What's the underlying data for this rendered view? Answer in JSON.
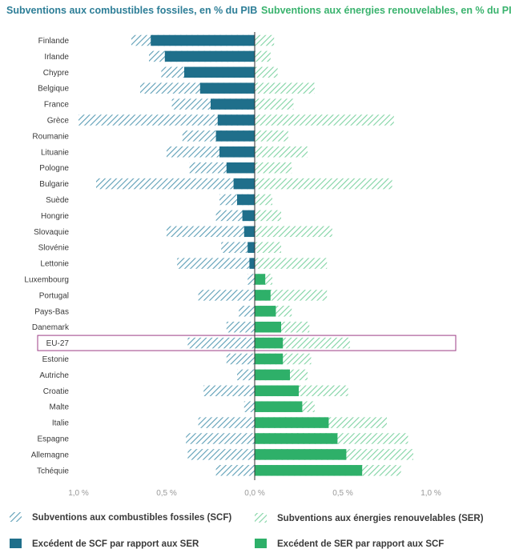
{
  "header": {
    "left_title": "Subventions aux combustibles fossiles, en % du PIB",
    "right_title": "Subventions aux énergies renouvelables, en % du PIB"
  },
  "colors": {
    "fossil": "#1f6f8b",
    "fossil_hatch": "#5c9eb6",
    "renew": "#2eb069",
    "renew_hatch": "#7fd3a3",
    "highlight_box": "#9c3d86",
    "header_left": "#2d7e97",
    "header_right": "#3ab36e"
  },
  "legend": {
    "scf_total": "Subventions aux combustibles fossiles (SCF)",
    "ser_total": "Subventions aux énergies renouvelables (SER)",
    "scf_excess": "Excédent de SCF par rapport aux SER",
    "ser_excess": "Excédent de SER par rapport aux SCF"
  },
  "chart_data": {
    "type": "bar",
    "orientation": "horizontal-diverging",
    "categories": [
      "Finlande",
      "Irlande",
      "Chypre",
      "Belgique",
      "France",
      "Grèce",
      "Roumanie",
      "Lituanie",
      "Pologne",
      "Bulgarie",
      "Suède",
      "Hongrie",
      "Slovaquie",
      "Slovénie",
      "Lettonie",
      "Luxembourg",
      "Portugal",
      "Pays-Bas",
      "Danemark",
      "EU-27",
      "Estonie",
      "Autriche",
      "Croatie",
      "Malte",
      "Italie",
      "Espagne",
      "Allemagne",
      "Tchéquie"
    ],
    "highlight_category": "EU-27",
    "series": [
      {
        "name": "Subventions aux combustibles fossiles (SCF)",
        "values": [
          0.7,
          0.6,
          0.53,
          0.65,
          0.47,
          1.0,
          0.41,
          0.5,
          0.37,
          0.9,
          0.2,
          0.22,
          0.5,
          0.19,
          0.44,
          0.04,
          0.32,
          0.09,
          0.16,
          0.38,
          0.16,
          0.1,
          0.29,
          0.06,
          0.32,
          0.39,
          0.38,
          0.22
        ]
      },
      {
        "name": "Subventions aux énergies renouvelables (SER)",
        "values": [
          0.11,
          0.09,
          0.13,
          0.34,
          0.22,
          0.79,
          0.19,
          0.3,
          0.21,
          0.78,
          0.1,
          0.15,
          0.44,
          0.15,
          0.41,
          0.1,
          0.41,
          0.21,
          0.31,
          0.54,
          0.32,
          0.3,
          0.53,
          0.34,
          0.75,
          0.87,
          0.9,
          0.83
        ]
      },
      {
        "name": "Excédent de SCF par rapport aux SER",
        "values": [
          0.59,
          0.51,
          0.4,
          0.31,
          0.25,
          0.21,
          0.22,
          0.2,
          0.16,
          0.12,
          0.1,
          0.07,
          0.06,
          0.04,
          0.03,
          0,
          0,
          0,
          0,
          0,
          0,
          0,
          0,
          0,
          0,
          0,
          0,
          0
        ]
      },
      {
        "name": "Excédent de SER par rapport aux SCF",
        "values": [
          0,
          0,
          0,
          0,
          0,
          0,
          0,
          0,
          0,
          0,
          0,
          0,
          0,
          0,
          0,
          0.06,
          0.09,
          0.12,
          0.15,
          0.16,
          0.16,
          0.2,
          0.25,
          0.27,
          0.42,
          0.47,
          0.52,
          0.61
        ]
      }
    ],
    "xticks": [
      "1,0 %",
      "0,5 %",
      "0,0 %",
      "0,5 %",
      "1,0 %"
    ],
    "xlim": [
      -1.0,
      1.0
    ],
    "grid": false,
    "legend_position": "bottom"
  }
}
